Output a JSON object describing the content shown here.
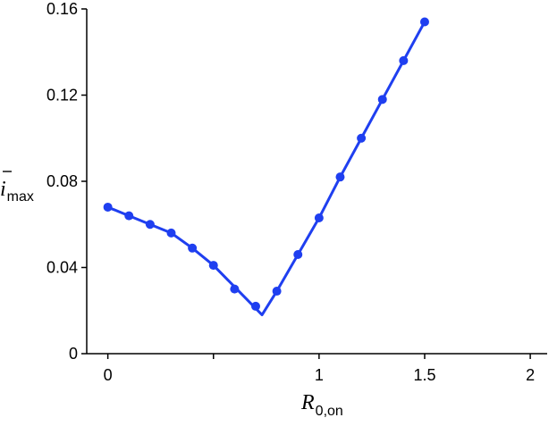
{
  "chart_data": {
    "type": "line",
    "xlabel": {
      "main": "R",
      "sub": "0,on"
    },
    "ylabel": {
      "main": "i",
      "sub": "max"
    },
    "xlim": [
      -0.1,
      2.08
    ],
    "ylim": [
      0,
      0.16
    ],
    "xticks": [
      {
        "value": 0,
        "label": "0"
      },
      {
        "value": 0.5,
        "label": ""
      },
      {
        "value": 1,
        "label": "1"
      },
      {
        "value": 1.5,
        "label": "1.5"
      },
      {
        "value": 2,
        "label": "2"
      }
    ],
    "yticks": [
      {
        "value": 0,
        "label": "0"
      },
      {
        "value": 0.04,
        "label": "0.04"
      },
      {
        "value": 0.08,
        "label": "0.08"
      },
      {
        "value": 0.12,
        "label": "0.12"
      },
      {
        "value": 0.16,
        "label": "0.16"
      }
    ],
    "grid": false,
    "color": "#1f3ff0",
    "series": [
      {
        "type": "scatter",
        "x": [
          0,
          0.1,
          0.2,
          0.3,
          0.4,
          0.5,
          0.6,
          0.7,
          0.8,
          0.9,
          1.0,
          1.1,
          1.2,
          1.3,
          1.4,
          1.5
        ],
        "y": [
          0.068,
          0.064,
          0.06,
          0.056,
          0.049,
          0.041,
          0.03,
          0.022,
          0.029,
          0.046,
          0.063,
          0.082,
          0.1,
          0.118,
          0.136,
          0.154
        ]
      },
      {
        "type": "line",
        "x": [
          0,
          0.1,
          0.2,
          0.3,
          0.4,
          0.5,
          0.6,
          0.7,
          0.73,
          0.8,
          0.9,
          1.0,
          1.1,
          1.2,
          1.3,
          1.4,
          1.5
        ],
        "y": [
          0.068,
          0.064,
          0.06,
          0.056,
          0.049,
          0.041,
          0.031,
          0.021,
          0.018,
          0.029,
          0.046,
          0.063,
          0.082,
          0.1,
          0.118,
          0.136,
          0.154
        ]
      }
    ]
  }
}
